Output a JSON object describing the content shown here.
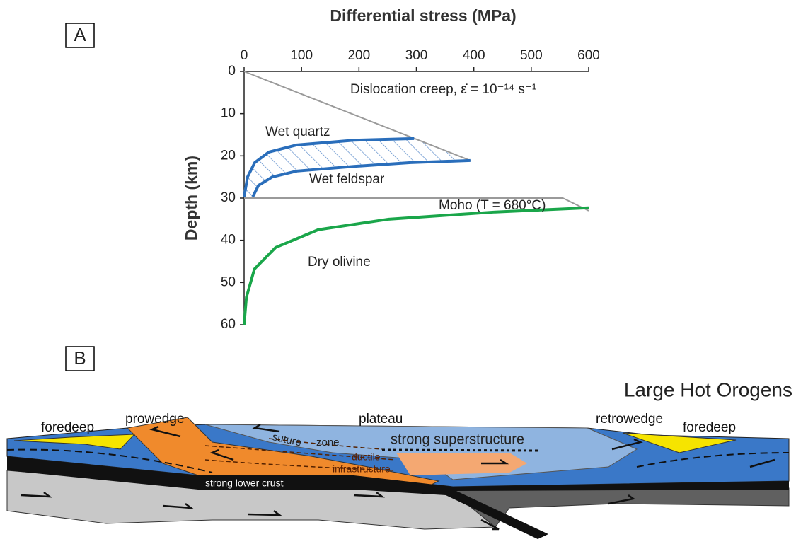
{
  "panel_a_label": "A",
  "chart_data": {
    "type": "line",
    "title": "Differential stress (MPa)",
    "y_label": "Depth (km)",
    "xlim": [
      0,
      600
    ],
    "xticks": [
      0,
      100,
      200,
      300,
      400,
      500,
      600
    ],
    "ylim": [
      0,
      60
    ],
    "yticks": [
      0,
      10,
      20,
      30,
      40,
      50,
      60
    ],
    "inverted_y": true,
    "annotations": [
      "Dislocation creep, ε̇ = 10⁻¹⁴ s⁻¹",
      "Wet quartz",
      "Wet feldspar",
      "Moho (T = 680°C)",
      "Dry olivine"
    ],
    "series": [
      {
        "color": "#9a9a9a",
        "x": [
          0,
          394
        ],
        "values": [
          0,
          21.1
        ]
      },
      {
        "color": "#2a6ebb",
        "x": [
          0,
          6,
          18.5,
          43,
          92,
          191,
          296
        ],
        "values": [
          29.7,
          25,
          21.6,
          19.1,
          17.4,
          16.3,
          15.9
        ]
      },
      {
        "color": "#2a6ebb",
        "x": [
          15,
          25,
          49,
          92,
          191,
          290,
          394
        ],
        "values": [
          29.7,
          27,
          25,
          23.6,
          22.5,
          21.6,
          21.1
        ]
      },
      {
        "color": "#9a9a9a",
        "x": [
          0,
          555,
          600
        ],
        "values": [
          30,
          30,
          33
        ]
      },
      {
        "color": "#1aa64a",
        "x": [
          0,
          4,
          18,
          55,
          129,
          252,
          437,
          600
        ],
        "values": [
          60,
          53.5,
          46.8,
          41.7,
          37.5,
          35,
          33.3,
          32.3
        ]
      }
    ]
  },
  "panel_b": {
    "label": "B",
    "title": "Large Hot Orogens",
    "labels": [
      "foredeep",
      "prowedge",
      "plateau",
      "retrowedge",
      "foredeep",
      "suture",
      "zone",
      "strong superstructure",
      "ductile",
      "infrastructure",
      "strong lower crust"
    ]
  }
}
